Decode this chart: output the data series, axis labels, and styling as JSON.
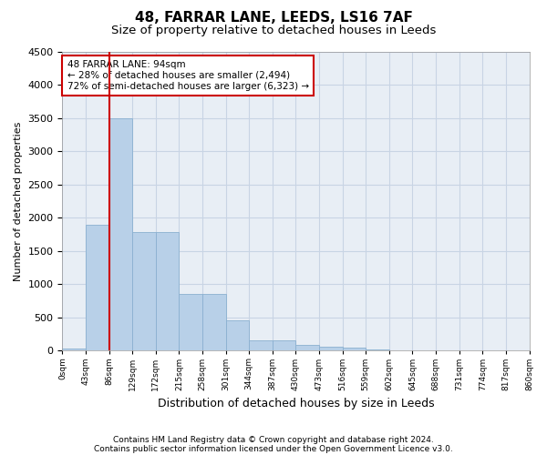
{
  "title": "48, FARRAR LANE, LEEDS, LS16 7AF",
  "subtitle": "Size of property relative to detached houses in Leeds",
  "xlabel": "Distribution of detached houses by size in Leeds",
  "ylabel": "Number of detached properties",
  "bar_values": [
    30,
    1900,
    3500,
    1780,
    1780,
    850,
    850,
    450,
    160,
    160,
    90,
    55,
    40,
    20,
    10,
    5,
    3,
    2,
    1,
    1
  ],
  "bin_labels": [
    "0sqm",
    "43sqm",
    "86sqm",
    "129sqm",
    "172sqm",
    "215sqm",
    "258sqm",
    "301sqm",
    "344sqm",
    "387sqm",
    "430sqm",
    "473sqm",
    "516sqm",
    "559sqm",
    "602sqm",
    "645sqm",
    "688sqm",
    "731sqm",
    "774sqm",
    "817sqm",
    "860sqm"
  ],
  "bar_color": "#b8d0e8",
  "bar_edge_color": "#8ab0d0",
  "property_line_x": 2.0,
  "property_line_color": "#cc0000",
  "ylim": [
    0,
    4500
  ],
  "yticks": [
    0,
    500,
    1000,
    1500,
    2000,
    2500,
    3000,
    3500,
    4000,
    4500
  ],
  "annotation_text": "48 FARRAR LANE: 94sqm\n← 28% of detached houses are smaller (2,494)\n72% of semi-detached houses are larger (6,323) →",
  "annotation_box_color": "#ffffff",
  "annotation_box_edge": "#cc0000",
  "footer1": "Contains HM Land Registry data © Crown copyright and database right 2024.",
  "footer2": "Contains public sector information licensed under the Open Government Licence v3.0.",
  "bg_color": "#ffffff",
  "plot_bg_color": "#e8eef5",
  "grid_color": "#c8d4e4",
  "title_fontsize": 11,
  "subtitle_fontsize": 9.5,
  "ylabel_fontsize": 8,
  "xlabel_fontsize": 9
}
